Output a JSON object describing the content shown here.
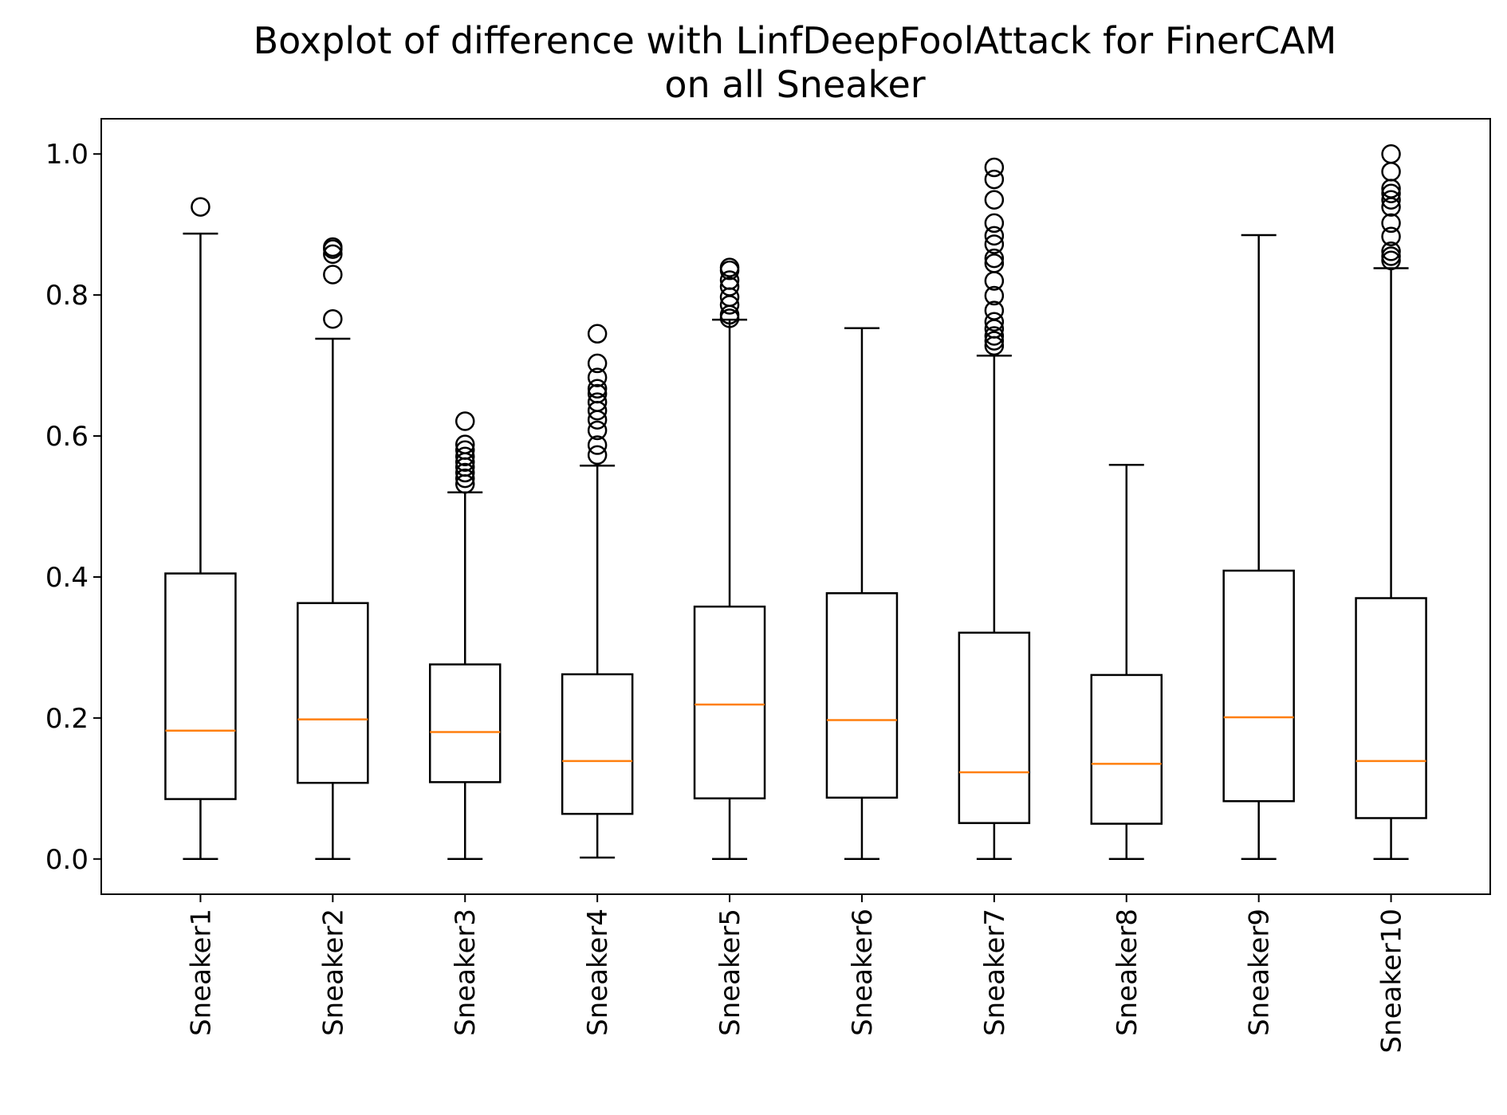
{
  "chart_data": {
    "type": "boxplot",
    "title_lines": [
      "Boxplot of difference with LinfDeepFoolAttack for FinerCAM",
      "on all Sneaker"
    ],
    "xlabel": "",
    "ylabel": "",
    "ylim": [
      -0.05,
      1.05
    ],
    "yticks": [
      0.0,
      0.2,
      0.4,
      0.6,
      0.8,
      1.0
    ],
    "ytick_labels": [
      "0.0",
      "0.2",
      "0.4",
      "0.6",
      "0.8",
      "1.0"
    ],
    "grid": false,
    "colors": {
      "box": "#000000",
      "median": "#ff7f0e",
      "outlier": "#000000"
    },
    "categories": [
      "Sneaker1",
      "Sneaker2",
      "Sneaker3",
      "Sneaker4",
      "Sneaker5",
      "Sneaker6",
      "Sneaker7",
      "Sneaker8",
      "Sneaker9",
      "Sneaker10"
    ],
    "boxes": [
      {
        "whislo": 0.0,
        "q1": 0.085,
        "med": 0.182,
        "q3": 0.405,
        "whishi": 0.887,
        "fliers": [
          0.925
        ]
      },
      {
        "whislo": 0.0,
        "q1": 0.108,
        "med": 0.198,
        "q3": 0.363,
        "whishi": 0.738,
        "fliers": [
          0.766,
          0.829,
          0.858,
          0.865,
          0.868
        ]
      },
      {
        "whislo": 0.0,
        "q1": 0.109,
        "med": 0.18,
        "q3": 0.276,
        "whishi": 0.52,
        "fliers": [
          0.532,
          0.54,
          0.548,
          0.556,
          0.563,
          0.571,
          0.58,
          0.588,
          0.621
        ]
      },
      {
        "whislo": 0.002,
        "q1": 0.064,
        "med": 0.139,
        "q3": 0.262,
        "whishi": 0.558,
        "fliers": [
          0.573,
          0.587,
          0.608,
          0.623,
          0.636,
          0.648,
          0.66,
          0.667,
          0.683,
          0.703,
          0.745
        ]
      },
      {
        "whislo": 0.0,
        "q1": 0.086,
        "med": 0.219,
        "q3": 0.358,
        "whishi": 0.765,
        "fliers": [
          0.767,
          0.772,
          0.786,
          0.797,
          0.812,
          0.821,
          0.835,
          0.839
        ]
      },
      {
        "whislo": 0.0,
        "q1": 0.087,
        "med": 0.197,
        "q3": 0.377,
        "whishi": 0.753,
        "fliers": []
      },
      {
        "whislo": 0.0,
        "q1": 0.051,
        "med": 0.123,
        "q3": 0.321,
        "whishi": 0.714,
        "fliers": [
          0.728,
          0.735,
          0.742,
          0.752,
          0.762,
          0.778,
          0.799,
          0.82,
          0.845,
          0.852,
          0.872,
          0.884,
          0.902,
          0.935,
          0.964,
          0.981
        ]
      },
      {
        "whislo": 0.0,
        "q1": 0.05,
        "med": 0.135,
        "q3": 0.261,
        "whishi": 0.559,
        "fliers": []
      },
      {
        "whislo": 0.0,
        "q1": 0.082,
        "med": 0.201,
        "q3": 0.409,
        "whishi": 0.885,
        "fliers": []
      },
      {
        "whislo": 0.0,
        "q1": 0.058,
        "med": 0.139,
        "q3": 0.37,
        "whishi": 0.838,
        "fliers": [
          0.849,
          0.855,
          0.862,
          0.883,
          0.902,
          0.925,
          0.935,
          0.944,
          0.951,
          0.975,
          1.0
        ]
      }
    ]
  }
}
